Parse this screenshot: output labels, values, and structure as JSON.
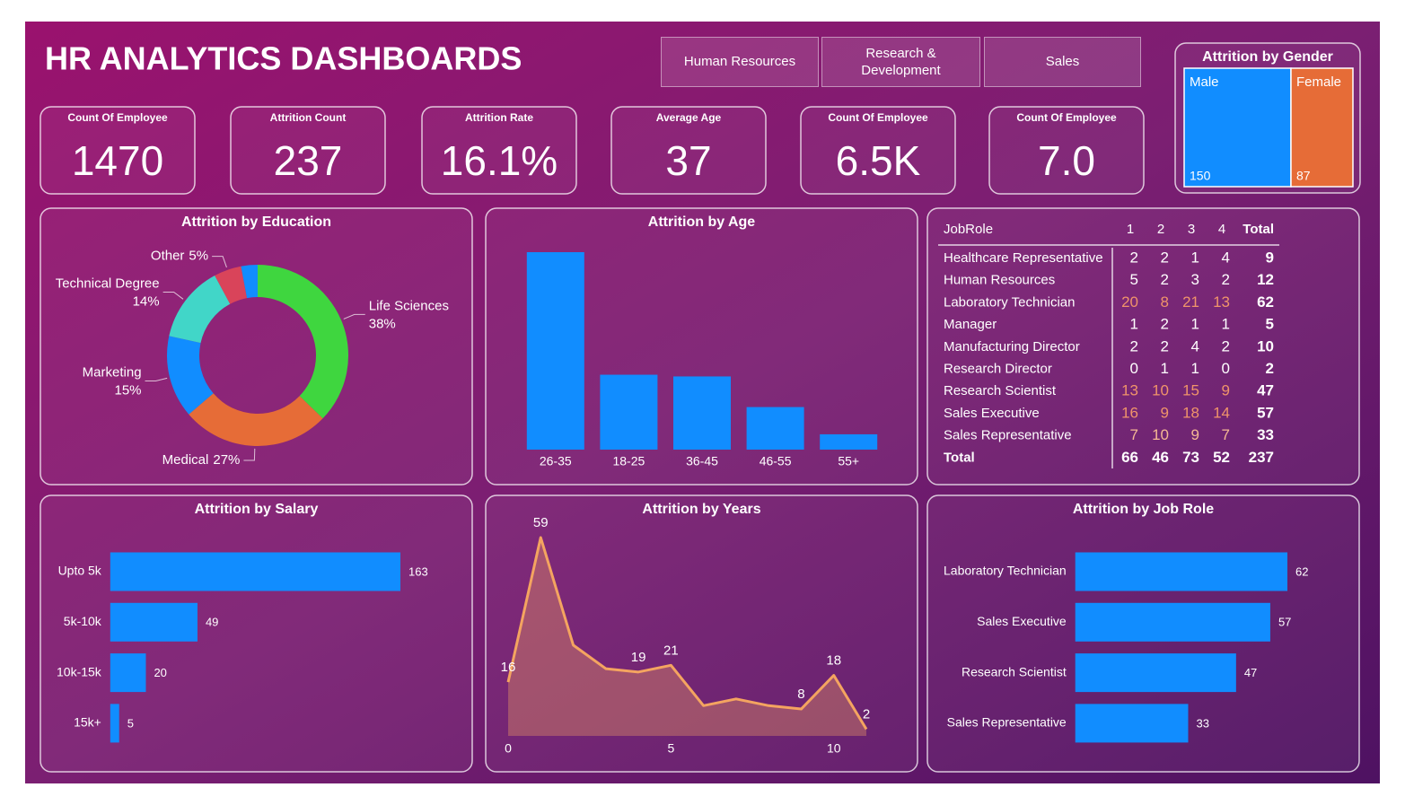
{
  "header": {
    "title": "HR ANALYTICS DASHBOARDS"
  },
  "slicers": [
    "Human Resources",
    "Research & Development",
    "Sales"
  ],
  "kpis": [
    {
      "label": "Count Of Employee",
      "value": "1470"
    },
    {
      "label": "Attrition Count",
      "value": "237"
    },
    {
      "label": "Attrition Rate",
      "value": "16.1%"
    },
    {
      "label": "Average Age",
      "value": "37"
    },
    {
      "label": "Count Of Employee",
      "value": "6.5K"
    },
    {
      "label": "Count Of Employee",
      "value": "7.0"
    }
  ],
  "chart_data": [
    {
      "type": "treemap",
      "title": "Attrition by Gender",
      "categories": [
        "Male",
        "Female"
      ],
      "values": [
        150,
        87
      ],
      "colors": [
        "#118dff",
        "#e66c37"
      ]
    },
    {
      "type": "donut",
      "title": "Attrition by Education",
      "categories": [
        "Life Sciences",
        "Medical",
        "Marketing",
        "Technical Degree",
        "Other",
        null
      ],
      "values": [
        38,
        27,
        15,
        14,
        5,
        3
      ],
      "value_labels": [
        "38%",
        "27%",
        "15%",
        "14%",
        "5%",
        null
      ],
      "colors": [
        "#3fd63f",
        "#e66c37",
        "#118dff",
        "#41d6c8",
        "#d9445a",
        "#118dff"
      ]
    },
    {
      "type": "bar",
      "title": "Attrition by Age",
      "categories": [
        "26-35",
        "18-25",
        "36-45",
        "46-55",
        "55+"
      ],
      "values": [
        116,
        44,
        43,
        25,
        9
      ],
      "color": "#118dff",
      "ylim": [
        0,
        116
      ]
    },
    {
      "type": "hbar",
      "title": "Attrition by Salary",
      "categories": [
        "Upto 5k",
        "5k-10k",
        "10k-15k",
        "15k+"
      ],
      "values": [
        163,
        49,
        20,
        5
      ],
      "color": "#118dff",
      "xlim": [
        0,
        163
      ]
    },
    {
      "type": "area",
      "title": "Attrition by Years",
      "x": [
        0,
        1,
        2,
        3,
        4,
        5,
        6,
        7,
        8,
        9,
        10,
        11
      ],
      "values": [
        16,
        59,
        27,
        20,
        19,
        21,
        9,
        11,
        9,
        8,
        18,
        2
      ],
      "value_labels": [
        "16",
        "59",
        null,
        null,
        "19",
        "21",
        null,
        null,
        null,
        "8",
        "18",
        "2"
      ],
      "color": "#f4a460",
      "xlim": [
        0,
        11
      ],
      "xticks": [
        0,
        5,
        10
      ],
      "ylim": [
        0,
        59
      ]
    },
    {
      "type": "hbar",
      "title": "Attrition by Job Role",
      "categories": [
        "Laboratory Technician",
        "Sales Executive",
        "Research Scientist",
        "Sales Representative"
      ],
      "values": [
        62,
        57,
        47,
        33
      ],
      "color": "#118dff",
      "xlim": [
        0,
        62
      ]
    }
  ],
  "table": {
    "columns": [
      "JobRole",
      "1",
      "2",
      "3",
      "4",
      "Total"
    ],
    "rows": [
      [
        "Healthcare Representative",
        2,
        2,
        1,
        4,
        9
      ],
      [
        "Human Resources",
        5,
        2,
        3,
        2,
        12
      ],
      [
        "Laboratory Technician",
        20,
        8,
        21,
        13,
        62
      ],
      [
        "Manager",
        1,
        2,
        1,
        1,
        5
      ],
      [
        "Manufacturing Director",
        2,
        2,
        4,
        2,
        10
      ],
      [
        "Research Director",
        0,
        1,
        1,
        0,
        2
      ],
      [
        "Research Scientist",
        13,
        10,
        15,
        9,
        47
      ],
      [
        "Sales Executive",
        16,
        9,
        18,
        14,
        57
      ],
      [
        "Sales Representative",
        7,
        10,
        9,
        7,
        33
      ]
    ],
    "totals": [
      "Total",
      66,
      46,
      73,
      52,
      237
    ],
    "row_colors": [
      "#ffffff",
      "#ffffff",
      "#f0946a",
      "#ffffff",
      "#ffffff",
      "#ffffff",
      "#f0946a",
      "#f0946a",
      "#f5b894"
    ]
  }
}
